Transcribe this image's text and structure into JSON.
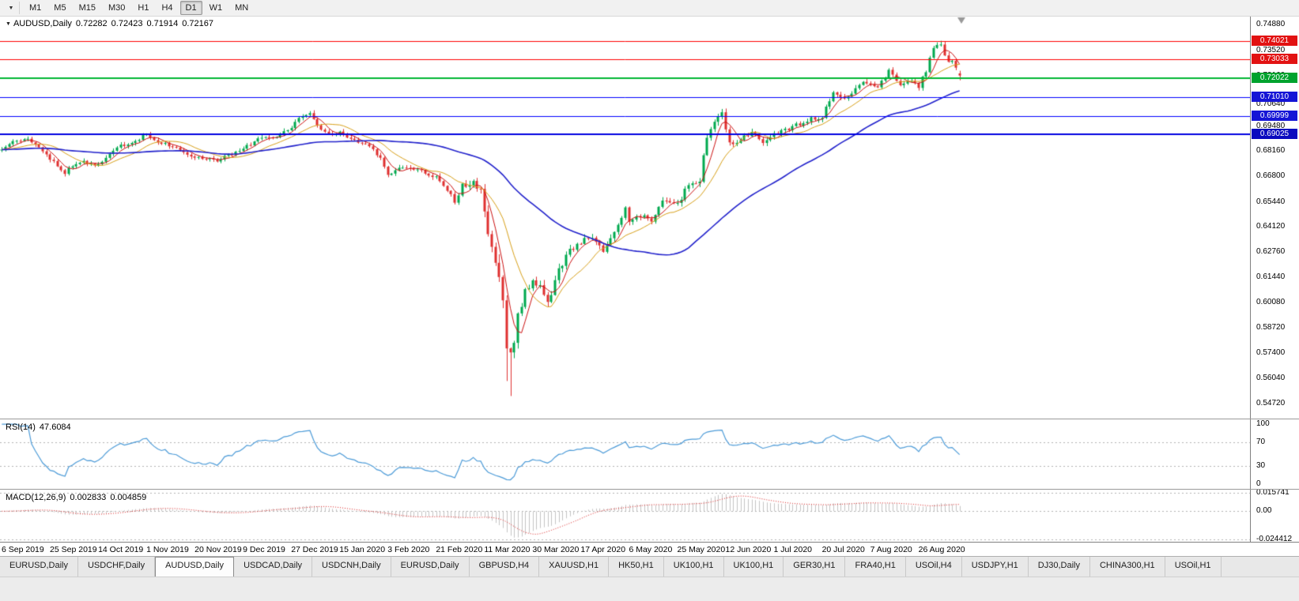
{
  "icons": {
    "dropdown_arrow": "▼",
    "header_arrow": "▼"
  },
  "toolbar": {
    "timeframes": [
      "M1",
      "M5",
      "M15",
      "M30",
      "H1",
      "H4",
      "D1",
      "W1",
      "MN"
    ],
    "active_timeframe": "D1"
  },
  "tabs": {
    "items": [
      "EURUSD,Daily",
      "USDCHF,Daily",
      "AUDUSD,Daily",
      "USDCAD,Daily",
      "USDCNH,Daily",
      "EURUSD,Daily",
      "GBPUSD,H4",
      "XAUUSD,H1",
      "HK50,H1",
      "UK100,H1",
      "UK100,H1",
      "GER30,H1",
      "FRA40,H1",
      "USOil,H4",
      "USDJPY,H1",
      "DJ30,Daily",
      "CHINA300,H1",
      "USOil,H1"
    ],
    "active_index": 2
  },
  "chart_data": {
    "type": "candlestick",
    "symbol": "AUDUSD",
    "timeframe": "Daily",
    "header": {
      "title": "AUDUSD,Daily",
      "open": "0.72282",
      "high": "0.72423",
      "low": "0.71914",
      "close": "0.72167"
    },
    "bars": 259,
    "y_range": [
      0.539,
      0.7535
    ],
    "price_ticks": [
      {
        "label": "0.74880",
        "price": 0.7488
      },
      {
        "label": "0.73520",
        "price": 0.7352
      },
      {
        "label": "0.72160",
        "price": 0.7216
      },
      {
        "label": "0.70640",
        "price": 0.7064
      },
      {
        "label": "0.69480",
        "price": 0.6948
      },
      {
        "label": "0.68160",
        "price": 0.6816
      },
      {
        "label": "0.66800",
        "price": 0.668
      },
      {
        "label": "0.65440",
        "price": 0.6544
      },
      {
        "label": "0.64120",
        "price": 0.6412
      },
      {
        "label": "0.62760",
        "price": 0.6276
      },
      {
        "label": "0.61440",
        "price": 0.6144
      },
      {
        "label": "0.60080",
        "price": 0.6008
      },
      {
        "label": "0.58720",
        "price": 0.5872
      },
      {
        "label": "0.57400",
        "price": 0.574
      },
      {
        "label": "0.56040",
        "price": 0.5604
      },
      {
        "label": "0.54720",
        "price": 0.5472
      }
    ],
    "levels": [
      {
        "label": "0.74021",
        "price": 0.74021,
        "color": "#FF0000",
        "width": 1,
        "tag_bg": "#E21212"
      },
      {
        "label": "0.73033",
        "price": 0.73033,
        "color": "#FF0000",
        "width": 1,
        "tag_bg": "#E21212"
      },
      {
        "label": "0.72022",
        "price": 0.72022,
        "color": "#00B633",
        "width": 2,
        "tag_bg": "#00A32E"
      },
      {
        "label": "0.71010",
        "price": 0.7101,
        "color": "#0000FF",
        "width": 1,
        "tag_bg": "#1515D6"
      },
      {
        "label": "0.69999",
        "price": 0.69999,
        "color": "#0000FF",
        "width": 1,
        "tag_bg": "#1515D6"
      },
      {
        "label": "0.69025",
        "price": 0.69025,
        "color": "#0000E0",
        "width": 2,
        "tag_bg": "#0B0BBF"
      }
    ],
    "x_labels": [
      {
        "label": "6 Sep 2019",
        "bar": 0
      },
      {
        "label": "25 Sep 2019",
        "bar": 13
      },
      {
        "label": "14 Oct 2019",
        "bar": 26
      },
      {
        "label": "1 Nov 2019",
        "bar": 39
      },
      {
        "label": "20 Nov 2019",
        "bar": 52
      },
      {
        "label": "9 Dec 2019",
        "bar": 65
      },
      {
        "label": "27 Dec 2019",
        "bar": 78
      },
      {
        "label": "15 Jan 2020",
        "bar": 91
      },
      {
        "label": "3 Feb 2020",
        "bar": 104
      },
      {
        "label": "21 Feb 2020",
        "bar": 117
      },
      {
        "label": "11 Mar 2020",
        "bar": 130
      },
      {
        "label": "30 Mar 2020",
        "bar": 143
      },
      {
        "label": "17 Apr 2020",
        "bar": 156
      },
      {
        "label": "6 May 2020",
        "bar": 169
      },
      {
        "label": "25 May 2020",
        "bar": 182
      },
      {
        "label": "12 Jun 2020",
        "bar": 195
      },
      {
        "label": "1 Jul 2020",
        "bar": 208
      },
      {
        "label": "20 Jul 2020",
        "bar": 221
      },
      {
        "label": "7 Aug 2020",
        "bar": 234
      },
      {
        "label": "26 Aug 2020",
        "bar": 247
      }
    ],
    "close_keypoints": [
      [
        0,
        0.682
      ],
      [
        3,
        0.686
      ],
      [
        6,
        0.6885
      ],
      [
        10,
        0.683
      ],
      [
        14,
        0.676
      ],
      [
        17,
        0.67
      ],
      [
        19,
        0.674
      ],
      [
        22,
        0.6755
      ],
      [
        26,
        0.6745
      ],
      [
        30,
        0.6825
      ],
      [
        34,
        0.6855
      ],
      [
        39,
        0.69
      ],
      [
        42,
        0.6865
      ],
      [
        46,
        0.684
      ],
      [
        50,
        0.679
      ],
      [
        54,
        0.677
      ],
      [
        58,
        0.6765
      ],
      [
        62,
        0.68
      ],
      [
        65,
        0.683
      ],
      [
        69,
        0.6875
      ],
      [
        73,
        0.6885
      ],
      [
        78,
        0.6945
      ],
      [
        81,
        0.7
      ],
      [
        83,
        0.702
      ],
      [
        86,
        0.693
      ],
      [
        89,
        0.69
      ],
      [
        91,
        0.691
      ],
      [
        95,
        0.687
      ],
      [
        99,
        0.6845
      ],
      [
        102,
        0.677
      ],
      [
        104,
        0.6695
      ],
      [
        108,
        0.673
      ],
      [
        112,
        0.6715
      ],
      [
        115,
        0.6685
      ],
      [
        117,
        0.668
      ],
      [
        120,
        0.66
      ],
      [
        122,
        0.6545
      ],
      [
        124,
        0.6625
      ],
      [
        127,
        0.664
      ],
      [
        129,
        0.659
      ],
      [
        130,
        0.648
      ],
      [
        132,
        0.629
      ],
      [
        134,
        0.615
      ],
      [
        135,
        0.605
      ],
      [
        136,
        0.578
      ],
      [
        137,
        0.574
      ],
      [
        138,
        0.58
      ],
      [
        139,
        0.595
      ],
      [
        141,
        0.607
      ],
      [
        143,
        0.613
      ],
      [
        145,
        0.608
      ],
      [
        147,
        0.6
      ],
      [
        150,
        0.618
      ],
      [
        153,
        0.628
      ],
      [
        156,
        0.633
      ],
      [
        159,
        0.636
      ],
      [
        162,
        0.628
      ],
      [
        165,
        0.637
      ],
      [
        168,
        0.651
      ],
      [
        169,
        0.643
      ],
      [
        172,
        0.647
      ],
      [
        175,
        0.644
      ],
      [
        178,
        0.6545
      ],
      [
        182,
        0.653
      ],
      [
        185,
        0.664
      ],
      [
        188,
        0.666
      ],
      [
        190,
        0.69
      ],
      [
        192,
        0.696
      ],
      [
        194,
        0.701
      ],
      [
        196,
        0.686
      ],
      [
        199,
        0.687
      ],
      [
        202,
        0.692
      ],
      [
        205,
        0.685
      ],
      [
        208,
        0.69
      ],
      [
        211,
        0.693
      ],
      [
        214,
        0.695
      ],
      [
        217,
        0.698
      ],
      [
        221,
        0.7
      ],
      [
        224,
        0.713
      ],
      [
        227,
        0.71
      ],
      [
        230,
        0.7145
      ],
      [
        232,
        0.718
      ],
      [
        236,
        0.716
      ],
      [
        239,
        0.724
      ],
      [
        242,
        0.717
      ],
      [
        245,
        0.719
      ],
      [
        247,
        0.716
      ],
      [
        249,
        0.724
      ],
      [
        251,
        0.7365
      ],
      [
        253,
        0.739
      ],
      [
        254,
        0.732
      ],
      [
        255,
        0.728
      ],
      [
        256,
        0.7285
      ],
      [
        257,
        0.725
      ],
      [
        258,
        0.72167
      ]
    ],
    "volatility_keypoints": [
      [
        0,
        0.002
      ],
      [
        115,
        0.0024
      ],
      [
        126,
        0.004
      ],
      [
        133,
        0.0085
      ],
      [
        140,
        0.007
      ],
      [
        148,
        0.005
      ],
      [
        158,
        0.0035
      ],
      [
        175,
        0.0028
      ],
      [
        190,
        0.0034
      ],
      [
        210,
        0.0026
      ],
      [
        258,
        0.0026
      ]
    ],
    "overrides": [
      {
        "i": 136,
        "low": 0.559
      },
      {
        "i": 137,
        "low": 0.551
      },
      {
        "i": 253,
        "high": 0.7402
      },
      {
        "i": 258,
        "open": 0.72282,
        "high": 0.72423,
        "low": 0.71914,
        "close": 0.72167
      }
    ],
    "noise_seed": 20200909,
    "colors": {
      "up": "#00A94E",
      "down": "#DF3030",
      "background": "#FFFFFF",
      "shift_marker": "#999999"
    },
    "moving_averages": [
      {
        "period": 5,
        "color": "#CC1111",
        "width": 1
      },
      {
        "period": 13,
        "color": "#D8A018",
        "width": 1
      },
      {
        "period": 50,
        "color": "#2222CC",
        "width": 1.6
      }
    ],
    "rsi": {
      "label": "RSI(14)",
      "value": "47.6084",
      "period": 14,
      "color": "#4C9BD8",
      "levels": [
        70,
        30
      ],
      "ticks": [
        {
          "label": "100",
          "v": 100
        },
        {
          "label": "70",
          "v": 70
        },
        {
          "label": "30",
          "v": 30
        },
        {
          "label": "0",
          "v": 0
        }
      ],
      "display_range": [
        -8,
        108
      ]
    },
    "macd": {
      "label": "MACD(12,26,9)",
      "value_macd": "0.002833",
      "value_signal": "0.004859",
      "fast": 12,
      "slow": 26,
      "signal": 9,
      "hist_color": "#C4C4C4",
      "signal_color": "#DD2222",
      "ticks": [
        {
          "label": "0.015741",
          "v": 0.015741
        },
        {
          "label": "0.00",
          "v": 0
        },
        {
          "label": "-0.024412",
          "v": -0.024412
        }
      ],
      "display_range": [
        -0.0262,
        0.0185
      ]
    }
  }
}
